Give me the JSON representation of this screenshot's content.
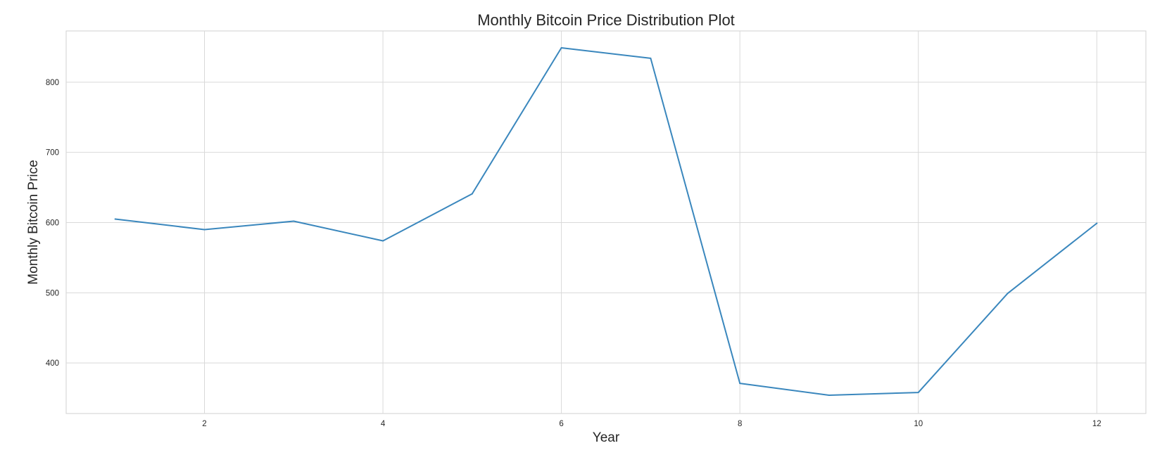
{
  "chart_data": {
    "type": "line",
    "title": "Monthly Bitcoin Price Distribution Plot",
    "xlabel": "Year",
    "ylabel": "Monthly Bitcoin Price",
    "xlim": [
      0.45,
      12.55
    ],
    "ylim": [
      328,
      873
    ],
    "xticks": [
      2,
      4,
      6,
      8,
      10,
      12
    ],
    "yticks": [
      400,
      500,
      600,
      700,
      800
    ],
    "grid": true,
    "legend": "none",
    "series": [
      {
        "color": "#3a87bd",
        "x": [
          1,
          2,
          3,
          4,
          5,
          6,
          7,
          8,
          9,
          10,
          11,
          12
        ],
        "y": [
          605,
          590,
          602,
          574,
          641,
          849,
          834,
          371,
          354,
          358,
          499,
          599
        ]
      }
    ]
  }
}
